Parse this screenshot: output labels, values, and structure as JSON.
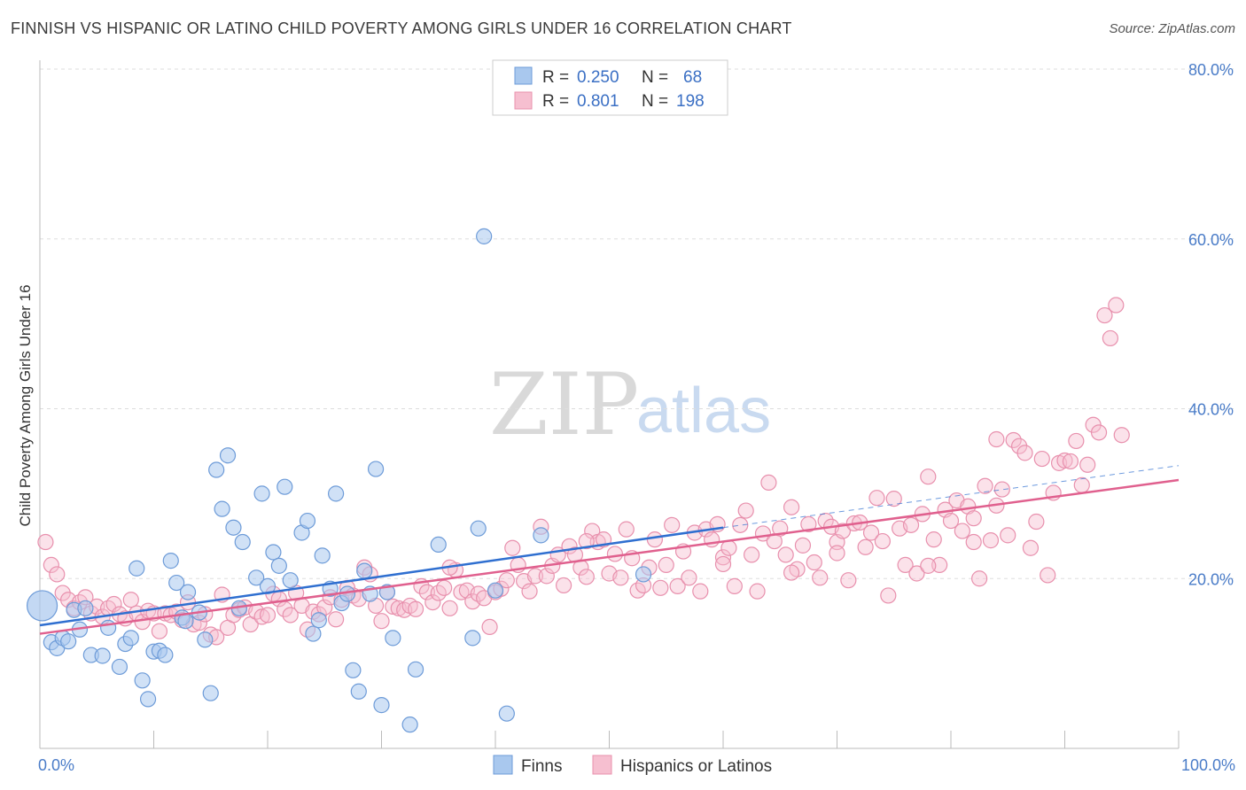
{
  "title": "FINNISH VS HISPANIC OR LATINO CHILD POVERTY AMONG GIRLS UNDER 16 CORRELATION CHART",
  "source": "Source: ZipAtlas.com",
  "watermark": {
    "zip": "ZIP",
    "atlas": "atlas"
  },
  "colors": {
    "finns_fill": "#a9c8ee",
    "finns_stroke": "#6d9bd8",
    "finns_line": "#2f6fd0",
    "hisp_fill": "#f6bfd0",
    "hisp_stroke": "#e890ad",
    "hisp_line": "#e0608e",
    "grid": "#dddddd",
    "axis_text": "#4a7cc8"
  },
  "legend": {
    "rows": [
      {
        "r_label": "R =",
        "r_value": "0.250",
        "n_label": "N =",
        "n_value": "68"
      },
      {
        "r_label": "R =",
        "r_value": "0.801",
        "n_label": "N =",
        "n_value": "198"
      }
    ]
  },
  "chart_data": {
    "type": "scatter",
    "title": "FINNISH VS HISPANIC OR LATINO CHILD POVERTY AMONG GIRLS UNDER 16 CORRELATION CHART",
    "xlabel": "",
    "ylabel": "Child Poverty Among Girls Under 16",
    "xlim": [
      0,
      100
    ],
    "ylim": [
      0,
      80
    ],
    "y_ticks": [
      20,
      40,
      60,
      80
    ],
    "y_tick_labels": [
      "20.0%",
      "40.0%",
      "60.0%",
      "80.0%"
    ],
    "x_tick_labels": [
      "0.0%",
      "100.0%"
    ],
    "grid": true,
    "legend_position": "top-center",
    "series": [
      {
        "name": "Finns",
        "r": 0.25,
        "n": 68,
        "trend": {
          "x0": 0,
          "y0": 14.5,
          "x1": 60,
          "y1": 26.0
        },
        "trend_dashed": {
          "x0": 60,
          "y0": 26.0,
          "x1": 100,
          "y1": 33.3
        },
        "points": [
          [
            0.2,
            16.8
          ],
          [
            1,
            12.5
          ],
          [
            1.5,
            11.8
          ],
          [
            2,
            13
          ],
          [
            2.5,
            12.6
          ],
          [
            3,
            16.3
          ],
          [
            3.5,
            14
          ],
          [
            4,
            16.5
          ],
          [
            4.5,
            11
          ],
          [
            5.5,
            10.9
          ],
          [
            6,
            14.2
          ],
          [
            7,
            9.6
          ],
          [
            7.5,
            12.3
          ],
          [
            8,
            13
          ],
          [
            8.5,
            21.2
          ],
          [
            9,
            8
          ],
          [
            9.5,
            5.8
          ],
          [
            10,
            11.4
          ],
          [
            10.5,
            11.5
          ],
          [
            11,
            11
          ],
          [
            11.5,
            22.1
          ],
          [
            12,
            19.5
          ],
          [
            12.5,
            15.4
          ],
          [
            13,
            18.4
          ],
          [
            14,
            16
          ],
          [
            14.5,
            12.8
          ],
          [
            15,
            6.5
          ],
          [
            15.5,
            32.8
          ],
          [
            16,
            28.2
          ],
          [
            16.5,
            34.5
          ],
          [
            17,
            26
          ],
          [
            17.5,
            16.5
          ],
          [
            17.8,
            24.3
          ],
          [
            19,
            20.1
          ],
          [
            19.5,
            30
          ],
          [
            20,
            19.1
          ],
          [
            20.5,
            23.1
          ],
          [
            21,
            21.5
          ],
          [
            21.5,
            30.8
          ],
          [
            22,
            19.8
          ],
          [
            23,
            25.4
          ],
          [
            23.5,
            26.8
          ],
          [
            24,
            13.5
          ],
          [
            24.5,
            15.1
          ],
          [
            24.8,
            22.7
          ],
          [
            25.5,
            18.8
          ],
          [
            26,
            30
          ],
          [
            26.5,
            17.1
          ],
          [
            27,
            18.2
          ],
          [
            27.5,
            9.2
          ],
          [
            28,
            6.7
          ],
          [
            28.5,
            20.9
          ],
          [
            29,
            18.2
          ],
          [
            29.5,
            32.9
          ],
          [
            30,
            5.1
          ],
          [
            30.5,
            18.4
          ],
          [
            31,
            13
          ],
          [
            32.5,
            2.8
          ],
          [
            33,
            9.3
          ],
          [
            35,
            24
          ],
          [
            38,
            13
          ],
          [
            38.5,
            25.9
          ],
          [
            39,
            60.3
          ],
          [
            40,
            18.6
          ],
          [
            41,
            4.1
          ],
          [
            44,
            25.1
          ],
          [
            53,
            20.5
          ],
          [
            12.8,
            15
          ]
        ]
      },
      {
        "name": "Hispanics or Latinos",
        "r": 0.801,
        "n": 198,
        "trend": {
          "x0": 0,
          "y0": 13.5,
          "x1": 100,
          "y1": 31.6
        },
        "points": [
          [
            0.5,
            24.3
          ],
          [
            1,
            21.6
          ],
          [
            1.5,
            20.5
          ],
          [
            2,
            18.3
          ],
          [
            2.5,
            17.5
          ],
          [
            3,
            16.5
          ],
          [
            3.5,
            17.2
          ],
          [
            4,
            17.8
          ],
          [
            4.5,
            15.9
          ],
          [
            5,
            16.7
          ],
          [
            5.5,
            15.5
          ],
          [
            6,
            16.5
          ],
          [
            6.5,
            17
          ],
          [
            7,
            15.8
          ],
          [
            7.5,
            15.3
          ],
          [
            8,
            17.5
          ],
          [
            8.5,
            15.9
          ],
          [
            9,
            14.9
          ],
          [
            9.5,
            16.2
          ],
          [
            10,
            15.9
          ],
          [
            10.5,
            13.8
          ],
          [
            11,
            15.9
          ],
          [
            11.5,
            15.7
          ],
          [
            12,
            16.1
          ],
          [
            12.5,
            15.1
          ],
          [
            13,
            17.2
          ],
          [
            13.5,
            14.6
          ],
          [
            14,
            14.8
          ],
          [
            14.5,
            15.8
          ],
          [
            15,
            13.4
          ],
          [
            15.5,
            13.1
          ],
          [
            16,
            18.1
          ],
          [
            16.5,
            14.2
          ],
          [
            17,
            15.7
          ],
          [
            17.5,
            16.3
          ],
          [
            18,
            16.6
          ],
          [
            18.5,
            14.6
          ],
          [
            19,
            16.1
          ],
          [
            19.5,
            15.5
          ],
          [
            20,
            15.7
          ],
          [
            20.5,
            18.2
          ],
          [
            21,
            17.6
          ],
          [
            21.5,
            16.4
          ],
          [
            22,
            15.7
          ],
          [
            22.5,
            18.3
          ],
          [
            23,
            16.8
          ],
          [
            23.5,
            14
          ],
          [
            24,
            16.1
          ],
          [
            24.5,
            15.8
          ],
          [
            25,
            16.6
          ],
          [
            25.5,
            17.8
          ],
          [
            26,
            15.2
          ],
          [
            26.5,
            17.5
          ],
          [
            27,
            18.9
          ],
          [
            27.5,
            18
          ],
          [
            28,
            17.6
          ],
          [
            28.5,
            21.3
          ],
          [
            29,
            20.5
          ],
          [
            29.5,
            16.8
          ],
          [
            30,
            15
          ],
          [
            30.5,
            18.4
          ],
          [
            31,
            16.7
          ],
          [
            31.5,
            16.5
          ],
          [
            32,
            16.3
          ],
          [
            32.5,
            16.8
          ],
          [
            33,
            16.4
          ],
          [
            33.5,
            19.1
          ],
          [
            34,
            18.4
          ],
          [
            34.5,
            17.2
          ],
          [
            35,
            18.3
          ],
          [
            35.5,
            18.9
          ],
          [
            36,
            16.5
          ],
          [
            36.5,
            21
          ],
          [
            37,
            18.4
          ],
          [
            37.5,
            18.6
          ],
          [
            38,
            17.3
          ],
          [
            38.5,
            18.2
          ],
          [
            39,
            17.7
          ],
          [
            39.5,
            14.3
          ],
          [
            40,
            18.4
          ],
          [
            40.5,
            18.8
          ],
          [
            41,
            19.8
          ],
          [
            41.5,
            23.6
          ],
          [
            42,
            21.6
          ],
          [
            42.5,
            19.7
          ],
          [
            43,
            18.5
          ],
          [
            43.5,
            20.3
          ],
          [
            44,
            26.1
          ],
          [
            44.5,
            20.3
          ],
          [
            45,
            21.5
          ],
          [
            45.5,
            22.8
          ],
          [
            46,
            19.2
          ],
          [
            46.5,
            23.8
          ],
          [
            47,
            22.8
          ],
          [
            47.5,
            21.3
          ],
          [
            48,
            20.2
          ],
          [
            48.5,
            25.6
          ],
          [
            49,
            24.3
          ],
          [
            49.5,
            24.6
          ],
          [
            50,
            20.6
          ],
          [
            50.5,
            22.9
          ],
          [
            51,
            20.1
          ],
          [
            51.5,
            25.8
          ],
          [
            52,
            22.4
          ],
          [
            52.5,
            18.6
          ],
          [
            53,
            19.2
          ],
          [
            53.5,
            21.3
          ],
          [
            54,
            24.6
          ],
          [
            54.5,
            18.9
          ],
          [
            55,
            21.6
          ],
          [
            55.5,
            26.3
          ],
          [
            56,
            19.1
          ],
          [
            56.5,
            23.2
          ],
          [
            57,
            20.1
          ],
          [
            57.5,
            25.4
          ],
          [
            58,
            18.5
          ],
          [
            58.5,
            25.8
          ],
          [
            59,
            24.6
          ],
          [
            59.5,
            26.4
          ],
          [
            60,
            22.5
          ],
          [
            60.5,
            23.6
          ],
          [
            61,
            19.1
          ],
          [
            61.5,
            26.3
          ],
          [
            62,
            28
          ],
          [
            62.5,
            22.8
          ],
          [
            63,
            18.5
          ],
          [
            63.5,
            25.3
          ],
          [
            64,
            31.3
          ],
          [
            64.5,
            24.4
          ],
          [
            65,
            25.9
          ],
          [
            65.5,
            22.8
          ],
          [
            66,
            28.4
          ],
          [
            66.5,
            21.1
          ],
          [
            67,
            23.9
          ],
          [
            67.5,
            26.4
          ],
          [
            68,
            21.9
          ],
          [
            68.5,
            20.1
          ],
          [
            69,
            26.8
          ],
          [
            69.5,
            26.1
          ],
          [
            70,
            24.3
          ],
          [
            70.5,
            25.6
          ],
          [
            71,
            19.8
          ],
          [
            71.5,
            26.5
          ],
          [
            72,
            26.6
          ],
          [
            72.5,
            23.7
          ],
          [
            73,
            25.4
          ],
          [
            73.5,
            29.5
          ],
          [
            74,
            24.4
          ],
          [
            74.5,
            18
          ],
          [
            75,
            29.4
          ],
          [
            75.5,
            25.9
          ],
          [
            76,
            21.6
          ],
          [
            76.5,
            26.3
          ],
          [
            77,
            20.6
          ],
          [
            77.5,
            27.6
          ],
          [
            78,
            32
          ],
          [
            78.5,
            24.6
          ],
          [
            79,
            21.6
          ],
          [
            79.5,
            28.1
          ],
          [
            80,
            26.8
          ],
          [
            80.5,
            29.2
          ],
          [
            81,
            25.6
          ],
          [
            81.5,
            28.5
          ],
          [
            82,
            24.3
          ],
          [
            82.5,
            20
          ],
          [
            83,
            30.9
          ],
          [
            83.5,
            24.5
          ],
          [
            84,
            28.6
          ],
          [
            84.5,
            30.5
          ],
          [
            85,
            25.1
          ],
          [
            85.5,
            36.3
          ],
          [
            86,
            35.6
          ],
          [
            86.5,
            34.8
          ],
          [
            87,
            23.6
          ],
          [
            87.5,
            26.7
          ],
          [
            88,
            34.1
          ],
          [
            88.5,
            20.4
          ],
          [
            89,
            30.1
          ],
          [
            89.5,
            33.6
          ],
          [
            90,
            33.9
          ],
          [
            90.5,
            33.8
          ],
          [
            91,
            36.2
          ],
          [
            91.5,
            31
          ],
          [
            92,
            33.4
          ],
          [
            92.5,
            38.1
          ],
          [
            93,
            37.2
          ],
          [
            93.5,
            51
          ],
          [
            94,
            48.3
          ],
          [
            94.5,
            52.2
          ],
          [
            95,
            36.9
          ],
          [
            84,
            36.4
          ],
          [
            82,
            27.1
          ],
          [
            78,
            21.5
          ],
          [
            70,
            23
          ],
          [
            66,
            20.7
          ],
          [
            60,
            21.7
          ],
          [
            48,
            24.4
          ],
          [
            36,
            21.3
          ]
        ]
      }
    ]
  },
  "bottom_legend": [
    {
      "label": "Finns"
    },
    {
      "label": "Hispanics or Latinos"
    }
  ]
}
